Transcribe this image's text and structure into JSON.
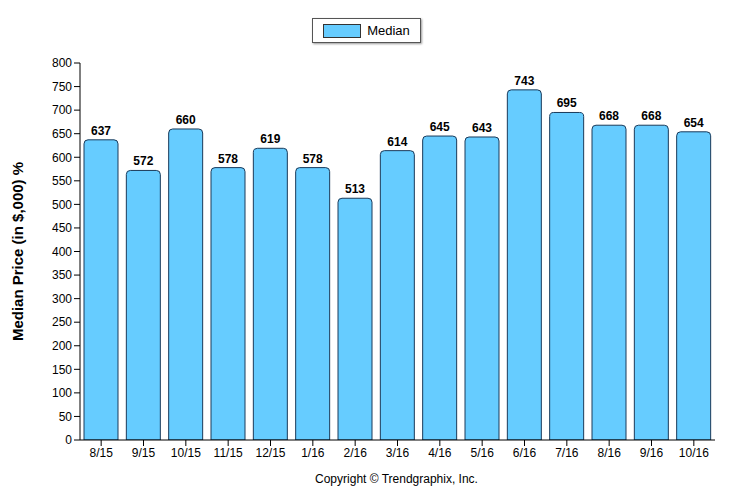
{
  "chart_data": {
    "type": "bar",
    "y_label": "Median Price (in $,000) %",
    "categories": [
      "8/15",
      "9/15",
      "10/15",
      "11/15",
      "12/15",
      "1/16",
      "2/16",
      "3/16",
      "4/16",
      "5/16",
      "6/16",
      "7/16",
      "8/16",
      "9/16",
      "10/16"
    ],
    "series": [
      {
        "name": "Median",
        "color": "#66ccff",
        "values": [
          637,
          572,
          660,
          578,
          619,
          578,
          513,
          614,
          645,
          643,
          743,
          695,
          668,
          668,
          654
        ]
      }
    ],
    "ylim": [
      0,
      800
    ],
    "yticks": [
      0,
      50,
      100,
      150,
      200,
      250,
      300,
      350,
      400,
      450,
      500,
      550,
      600,
      650,
      700,
      750,
      800
    ],
    "grid": false,
    "legend": "top",
    "data_labels": true,
    "annotations": [
      "Copyright © Trendgraphix, Inc."
    ]
  }
}
